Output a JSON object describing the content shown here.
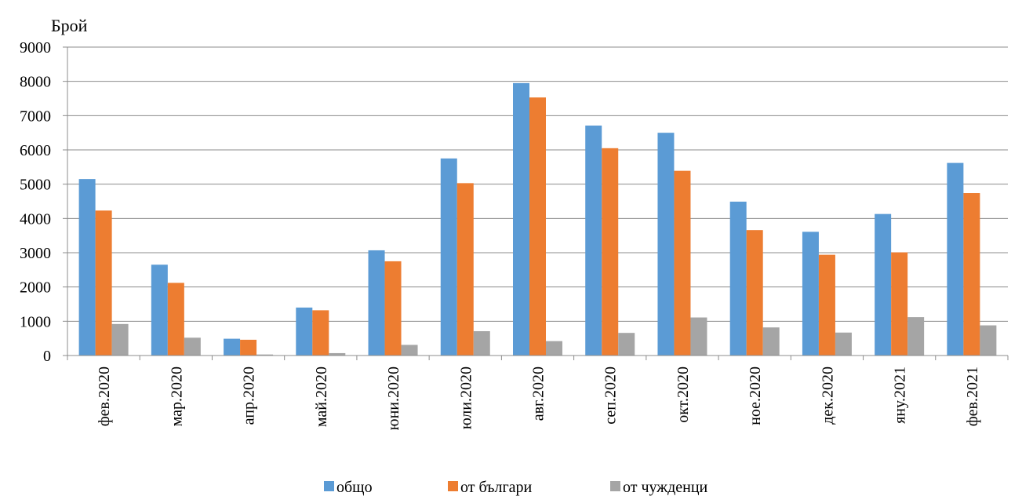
{
  "chart_data": {
    "type": "bar",
    "title": "",
    "xlabel": "",
    "ylabel": "Брой",
    "ylim": [
      0,
      9000
    ],
    "yticks": [
      0,
      1000,
      2000,
      3000,
      4000,
      5000,
      6000,
      7000,
      8000,
      9000
    ],
    "grid": true,
    "legend_position": "bottom",
    "categories": [
      "фев.2020",
      "мар.2020",
      "апр.2020",
      "май.2020",
      "юни.2020",
      "юли.2020",
      "авг.2020",
      "сеп.2020",
      "окт.2020",
      "ное.2020",
      "дек.2020",
      "яну.2021",
      "фев.2021"
    ],
    "series": [
      {
        "name": "общо",
        "color": "#5B9BD5",
        "values": [
          5150,
          2650,
          490,
          1400,
          3070,
          5750,
          7950,
          6710,
          6500,
          4490,
          3610,
          4130,
          5620
        ]
      },
      {
        "name": "от българи",
        "color": "#ED7D31",
        "values": [
          4230,
          2120,
          460,
          1320,
          2750,
          5030,
          7530,
          6050,
          5390,
          3660,
          2940,
          3010,
          4740
        ]
      },
      {
        "name": "от чужденци",
        "color": "#A5A5A5",
        "values": [
          920,
          520,
          30,
          70,
          310,
          710,
          420,
          660,
          1110,
          820,
          670,
          1120,
          880
        ]
      }
    ]
  }
}
